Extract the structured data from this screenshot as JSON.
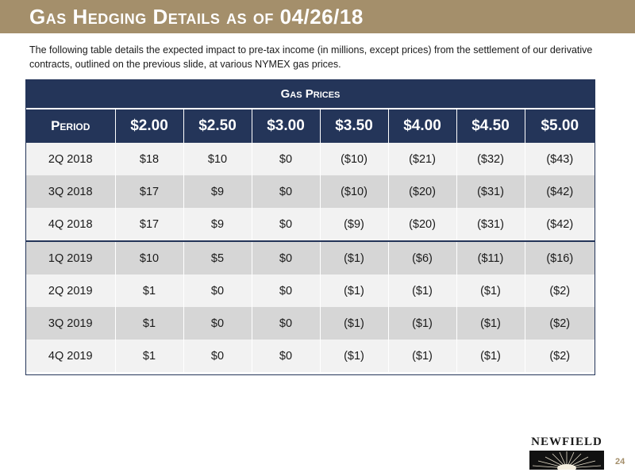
{
  "slide": {
    "title": "Gas Hedging Details as of 04/26/18",
    "intro": "The following table details the expected impact to pre-tax income (in millions, except prices) from the settlement of our derivative contracts, outlined on the previous slide, at various NYMEX gas prices.",
    "page_number": "24"
  },
  "table": {
    "group_header": "Gas Prices",
    "columns": [
      "Period",
      "$2.00",
      "$2.50",
      "$3.00",
      "$3.50",
      "$4.00",
      "$4.50",
      "$5.00"
    ],
    "rows": [
      [
        "2Q 2018",
        "$18",
        "$10",
        "$0",
        "($10)",
        "($21)",
        "($32)",
        "($43)"
      ],
      [
        "3Q 2018",
        "$17",
        "$9",
        "$0",
        "($10)",
        "($20)",
        "($31)",
        "($42)"
      ],
      [
        "4Q 2018",
        "$17",
        "$9",
        "$0",
        "($9)",
        "($20)",
        "($31)",
        "($42)"
      ],
      [
        "1Q 2019",
        "$10",
        "$5",
        "$0",
        "($1)",
        "($6)",
        "($11)",
        "($16)"
      ],
      [
        "2Q 2019",
        "$1",
        "$0",
        "$0",
        "($1)",
        "($1)",
        "($1)",
        "($2)"
      ],
      [
        "3Q 2019",
        "$1",
        "$0",
        "$0",
        "($1)",
        "($1)",
        "($1)",
        "($2)"
      ],
      [
        "4Q 2019",
        "$1",
        "$0",
        "$0",
        "($1)",
        "($1)",
        "($1)",
        "($2)"
      ]
    ]
  },
  "logo": {
    "text": "NEWFIELD",
    "icon": "sunburst-logo-icon"
  },
  "colors": {
    "title_bar": "#a48f6b",
    "table_header": "#243559",
    "row_light": "#f2f2f2",
    "row_dark": "#d6d6d6"
  }
}
